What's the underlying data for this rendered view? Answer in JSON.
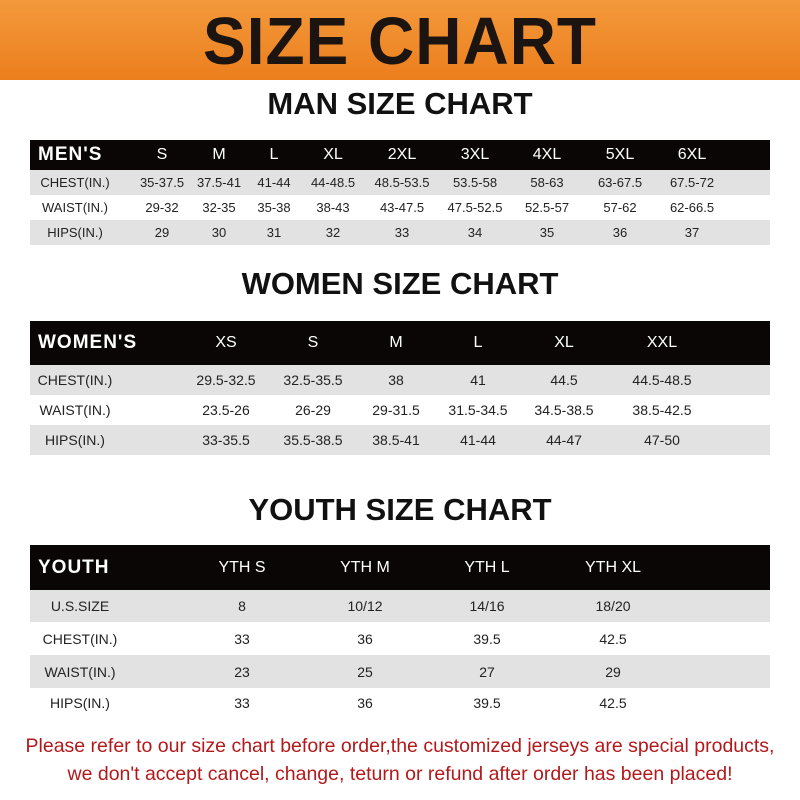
{
  "banner": {
    "title": "SIZE CHART",
    "color": "#ef8a2a"
  },
  "tables": [
    {
      "title": "MAN SIZE CHART",
      "header": "MEN'S",
      "sizes": [
        "S",
        "M",
        "L",
        "XL",
        "2XL",
        "3XL",
        "4XL",
        "5XL",
        "6XL"
      ],
      "rows": [
        {
          "label": "CHEST(IN.)",
          "values": [
            "35-37.5",
            "37.5-41",
            "41-44",
            "44-48.5",
            "48.5-53.5",
            "53.5-58",
            "58-63",
            "63-67.5",
            "67.5-72"
          ]
        },
        {
          "label": "WAIST(IN.)",
          "values": [
            "29-32",
            "32-35",
            "35-38",
            "38-43",
            "43-47.5",
            "47.5-52.5",
            "52.5-57",
            "57-62",
            "62-66.5"
          ]
        },
        {
          "label": "HIPS(IN.)",
          "values": [
            "29",
            "30",
            "31",
            "32",
            "33",
            "34",
            "35",
            "36",
            "37"
          ]
        }
      ]
    },
    {
      "title": "WOMEN SIZE CHART",
      "header": "WOMEN'S",
      "sizes": [
        "XS",
        "S",
        "M",
        "L",
        "XL",
        "XXL"
      ],
      "rows": [
        {
          "label": "CHEST(IN.)",
          "values": [
            "29.5-32.5",
            "32.5-35.5",
            "38",
            "41",
            "44.5",
            "44.5-48.5"
          ]
        },
        {
          "label": "WAIST(IN.)",
          "values": [
            "23.5-26",
            "26-29",
            "29-31.5",
            "31.5-34.5",
            "34.5-38.5",
            "38.5-42.5"
          ]
        },
        {
          "label": "HIPS(IN.)",
          "values": [
            "33-35.5",
            "35.5-38.5",
            "38.5-41",
            "41-44",
            "44-47",
            "47-50"
          ]
        }
      ]
    },
    {
      "title": "YOUTH SIZE CHART",
      "header": "YOUTH",
      "sizes": [
        "YTH S",
        "YTH M",
        "YTH L",
        "YTH XL"
      ],
      "rows": [
        {
          "label": "U.S.SIZE",
          "values": [
            "8",
            "10/12",
            "14/16",
            "18/20"
          ]
        },
        {
          "label": "CHEST(IN.)",
          "values": [
            "33",
            "36",
            "39.5",
            "42.5"
          ]
        },
        {
          "label": "WAIST(IN.)",
          "values": [
            "23",
            "25",
            "27",
            "29"
          ]
        },
        {
          "label": "HIPS(IN.)",
          "values": [
            "33",
            "36",
            "39.5",
            "42.5"
          ]
        }
      ]
    }
  ],
  "footer": {
    "line1": "Please refer to our size chart before order,the customized jerseys are special products,",
    "line2": "we don't accept cancel, change, teturn or refund after order has been placed!",
    "color": "#b3191b"
  }
}
